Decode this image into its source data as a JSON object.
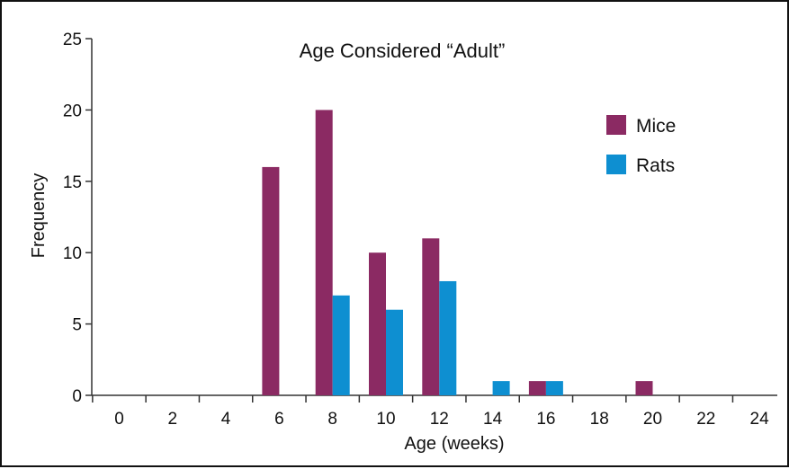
{
  "chart_data": {
    "type": "bar",
    "title": "Age Considered “Adult”",
    "xlabel": "Age (weeks)",
    "ylabel": "Frequency",
    "ylim": [
      0,
      25
    ],
    "yticks": [
      0,
      5,
      10,
      15,
      20,
      25
    ],
    "categories": [
      "0",
      "2",
      "4",
      "6",
      "8",
      "10",
      "12",
      "14",
      "16",
      "18",
      "20",
      "22",
      "24"
    ],
    "series": [
      {
        "name": "Mice",
        "color": "#8b2a63",
        "values": [
          0,
          0,
          0,
          16,
          20,
          10,
          11,
          0,
          1,
          0,
          1,
          0,
          0
        ]
      },
      {
        "name": "Rats",
        "color": "#0e8fd1",
        "values": [
          0,
          0,
          0,
          0,
          7,
          6,
          8,
          1,
          1,
          0,
          0,
          0,
          0
        ]
      }
    ],
    "grid": false,
    "legend": "top-right"
  }
}
